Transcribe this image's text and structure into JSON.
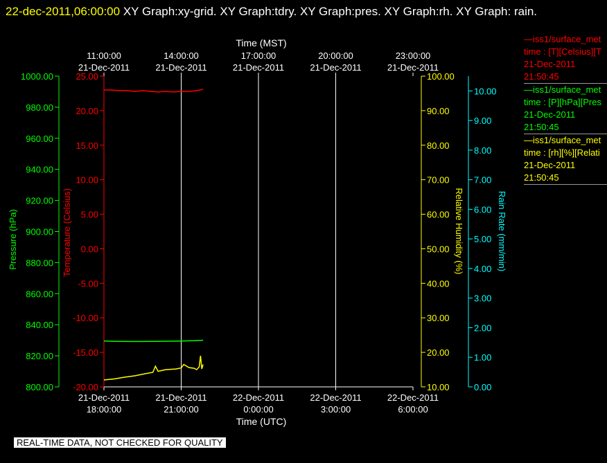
{
  "header": {
    "datetime": "22-dec-2011,06:00:00",
    "graphs": "XY Graph:xy-grid.  XY Graph:tdry.  XY Graph:pres.  XY Graph:rh.  XY Graph: rain."
  },
  "colors": {
    "temperature": "#ff0000",
    "pressure": "#00ff00",
    "humidity": "#ffff00",
    "rain": "#00ffff",
    "grid": "#ffffff",
    "axis_text": "#ffffff",
    "header_datetime": "#ffff00"
  },
  "legend": [
    {
      "name": "iss1/surface_met",
      "line2": "time : [T][Celsius][T",
      "date": "21-Dec-2011",
      "time": "21:50:45",
      "color": "#ff0000"
    },
    {
      "name": "iss1/surface_met",
      "line2": "time : [P][hPa][Pres",
      "date": "21-Dec-2011",
      "time": "21:50:45",
      "color": "#00ff00"
    },
    {
      "name": "iss1/surface_met",
      "line2": "time : [rh][%][Relati",
      "date": "21-Dec-2011",
      "time": "21:50:45",
      "color": "#ffff00"
    }
  ],
  "footer_note": "REAL-TIME DATA, NOT CHECKED FOR QUALITY",
  "chart_data": {
    "type": "line",
    "grid": true,
    "top_axis": {
      "label": "Time (MST)",
      "ticks": [
        {
          "time": "11:00:00",
          "date": "21-Dec-2011"
        },
        {
          "time": "14:00:00",
          "date": "21-Dec-2011"
        },
        {
          "time": "17:00:00",
          "date": "21-Dec-2011"
        },
        {
          "time": "20:00:00",
          "date": "21-Dec-2011"
        },
        {
          "time": "23:00:00",
          "date": "21-Dec-2011"
        }
      ]
    },
    "bottom_axis": {
      "label": "Time (UTC)",
      "ticks": [
        {
          "date": "21-Dec-2011",
          "time": "18:00:00"
        },
        {
          "date": "21-Dec-2011",
          "time": "21:00:00"
        },
        {
          "date": "22-Dec-2011",
          "time": "0:00:00"
        },
        {
          "date": "22-Dec-2011",
          "time": "3:00:00"
        },
        {
          "date": "22-Dec-2011",
          "time": "6:00:00"
        }
      ],
      "tick_hours": [
        18,
        21,
        24,
        27,
        30
      ],
      "range_hours": [
        18,
        30
      ]
    },
    "axes": {
      "pressure": {
        "label": "Pressure (hPa)",
        "min": 800,
        "max": 1000,
        "ticks": [
          "800.00",
          "820.00",
          "840.00",
          "860.00",
          "880.00",
          "900.00",
          "920.00",
          "940.00",
          "960.00",
          "980.00",
          "1000.00"
        ]
      },
      "temperature": {
        "label": "Temperature (Celsius)",
        "min": -20,
        "max": 25,
        "ticks": [
          "-20.00",
          "-15.00",
          "-10.00",
          "-5.00",
          "0.00",
          "5.00",
          "10.00",
          "15.00",
          "20.00",
          "25.00"
        ]
      },
      "humidity": {
        "label": "Relative Humidity (%)",
        "min": 10,
        "max": 100,
        "ticks": [
          "10.00",
          "20.00",
          "30.00",
          "40.00",
          "50.00",
          "60.00",
          "70.00",
          "80.00",
          "90.00",
          "100.00"
        ]
      },
      "rain": {
        "label": "Rain Rate (mm/min)",
        "min": 0,
        "max": 10.5,
        "ticks": [
          "0.00",
          "1.00",
          "2.00",
          "3.00",
          "4.00",
          "5.00",
          "6.00",
          "7.00",
          "8.00",
          "9.00",
          "10.00"
        ]
      }
    },
    "series": [
      {
        "name": "tdry",
        "axis": "temperature",
        "color": "#ff0000",
        "x": [
          18.0,
          18.3,
          18.6,
          18.9,
          19.2,
          19.5,
          19.8,
          20.1,
          20.4,
          20.7,
          21.0,
          21.3,
          21.6,
          21.85
        ],
        "y": [
          23.0,
          23.0,
          22.9,
          22.9,
          22.8,
          22.9,
          22.8,
          22.7,
          22.8,
          22.7,
          22.8,
          22.8,
          22.9,
          23.1
        ]
      },
      {
        "name": "pres",
        "axis": "pressure",
        "color": "#00ff00",
        "x": [
          18.0,
          18.5,
          19.0,
          19.5,
          20.0,
          20.5,
          21.0,
          21.5,
          21.85
        ],
        "y": [
          829.5,
          829.3,
          829.2,
          829.2,
          829.3,
          829.4,
          829.5,
          829.7,
          830.0
        ]
      },
      {
        "name": "rh",
        "axis": "humidity",
        "color": "#ffff00",
        "x": [
          18.0,
          18.4,
          18.8,
          19.2,
          19.6,
          19.9,
          20.0,
          20.1,
          20.4,
          20.8,
          21.0,
          21.1,
          21.3,
          21.5,
          21.6,
          21.7,
          21.75,
          21.8,
          21.85
        ],
        "y": [
          12.0,
          12.3,
          12.8,
          13.2,
          13.8,
          14.2,
          16.0,
          14.5,
          15.0,
          15.2,
          15.5,
          16.5,
          15.6,
          15.4,
          15.0,
          15.8,
          19.0,
          15.2,
          16.5
        ]
      }
    ]
  }
}
